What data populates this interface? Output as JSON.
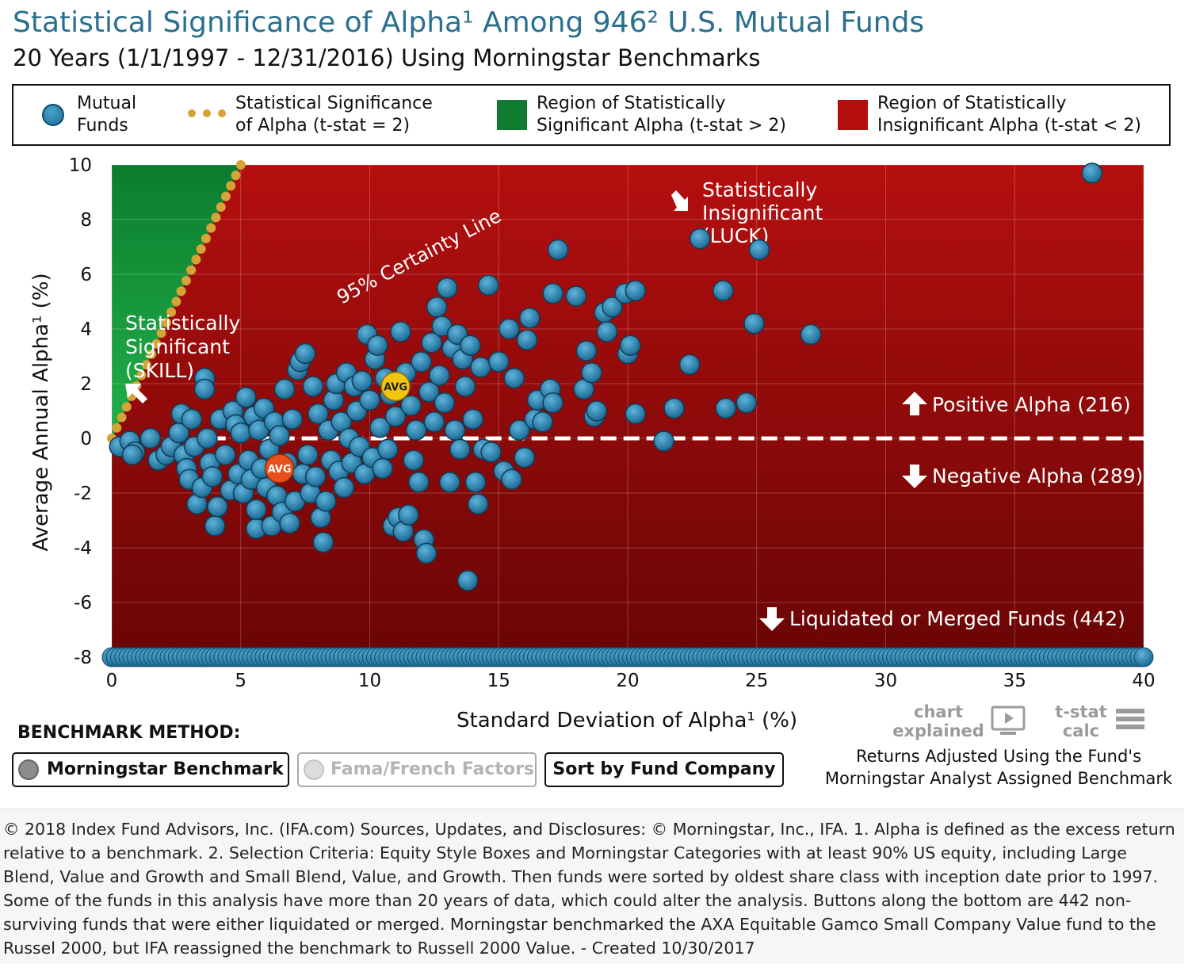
{
  "header": {
    "title": "Statistical Significance of Alpha¹ Among 946² U.S. Mutual Funds",
    "subtitle": "20 Years (1/1/1997 - 12/31/2016) Using Morningstar Benchmarks"
  },
  "legend": {
    "funds_l1": "Mutual",
    "funds_l2": "Funds",
    "line_l1": "Statistical Significance",
    "line_l2": "of Alpha (t-stat = 2)",
    "sig_l1": "Region of Statistically",
    "sig_l2": "Significant Alpha (t-stat > 2)",
    "insig_l1": "Region of Statistically",
    "insig_l2": "Insignificant Alpha (t-stat < 2)"
  },
  "colors": {
    "significant": "#0f8a34",
    "insignificant": "#a30c0c",
    "fund": "#2b86b4",
    "tstat_line": "#d4a437",
    "avg_surviving": "#f2c512",
    "avg_failed": "#e8511c"
  },
  "annotations": {
    "certainty": "95% Certainty Line",
    "luck_l1": "Statistically",
    "luck_l2": "Insignificant",
    "luck_l3": "(LUCK)",
    "skill_l1": "Statistically",
    "skill_l2": "Significant",
    "skill_l3": "(SKILL)",
    "positive": "Positive Alpha (216)",
    "negative": "Negative Alpha (289)",
    "liquidated": "Liquidated or Merged Funds (442)",
    "avg": "AVG"
  },
  "chart_data": {
    "type": "scatter",
    "xlabel": "Standard Deviation of Alpha¹ (%)",
    "ylabel": "Average Annual Alpha¹ (%)",
    "xlim": [
      0,
      40
    ],
    "ylim": [
      -8,
      10
    ],
    "xticks": [
      0,
      5,
      10,
      15,
      20,
      25,
      30,
      35,
      40
    ],
    "yticks": [
      10,
      8,
      6,
      4,
      2,
      0,
      -2,
      -4,
      -6,
      -8
    ],
    "tstat_threshold": 2,
    "series": [
      {
        "name": "Mutual Funds",
        "points": [
          [
            0.3,
            -0.3
          ],
          [
            0.7,
            -0.1
          ],
          [
            0.9,
            -0.5
          ],
          [
            0.8,
            -0.6
          ],
          [
            1.5,
            0.0
          ],
          [
            1.8,
            -0.8
          ],
          [
            2.1,
            -0.6
          ],
          [
            2.3,
            -0.3
          ],
          [
            2.6,
            0.2
          ],
          [
            2.7,
            0.9
          ],
          [
            2.8,
            -0.6
          ],
          [
            2.9,
            -1.1
          ],
          [
            3.0,
            -1.5
          ],
          [
            3.1,
            0.7
          ],
          [
            3.2,
            -0.3
          ],
          [
            3.3,
            -2.4
          ],
          [
            3.5,
            -1.8
          ],
          [
            3.6,
            2.2
          ],
          [
            3.6,
            1.8
          ],
          [
            3.8,
            -0.9
          ],
          [
            3.7,
            0.0
          ],
          [
            3.9,
            -1.4
          ],
          [
            4.0,
            -3.2
          ],
          [
            4.1,
            -2.5
          ],
          [
            4.2,
            0.7
          ],
          [
            4.4,
            -0.6
          ],
          [
            4.6,
            -1.9
          ],
          [
            4.7,
            1.0
          ],
          [
            4.8,
            0.5
          ],
          [
            4.9,
            -1.3
          ],
          [
            5.0,
            0.2
          ],
          [
            5.1,
            -2.0
          ],
          [
            5.2,
            1.5
          ],
          [
            5.3,
            -0.8
          ],
          [
            5.4,
            -1.5
          ],
          [
            5.5,
            0.8
          ],
          [
            5.6,
            -3.3
          ],
          [
            5.6,
            -2.6
          ],
          [
            5.7,
            0.3
          ],
          [
            5.8,
            -1.1
          ],
          [
            5.9,
            1.1
          ],
          [
            6.0,
            -1.8
          ],
          [
            6.1,
            -0.4
          ],
          [
            6.2,
            -3.2
          ],
          [
            6.3,
            0.6
          ],
          [
            6.4,
            -2.1
          ],
          [
            6.5,
            0.1
          ],
          [
            6.6,
            -2.7
          ],
          [
            6.7,
            1.8
          ],
          [
            6.8,
            -0.9
          ],
          [
            6.9,
            -3.1
          ],
          [
            7.0,
            0.7
          ],
          [
            7.1,
            -2.3
          ],
          [
            7.2,
            2.5
          ],
          [
            7.3,
            2.8
          ],
          [
            7.4,
            -1.3
          ],
          [
            7.5,
            3.1
          ],
          [
            7.6,
            -0.6
          ],
          [
            7.7,
            -2.0
          ],
          [
            7.8,
            1.9
          ],
          [
            7.9,
            -1.4
          ],
          [
            8.0,
            0.9
          ],
          [
            8.1,
            -2.9
          ],
          [
            8.2,
            -3.8
          ],
          [
            8.3,
            -2.3
          ],
          [
            8.4,
            0.3
          ],
          [
            8.5,
            -0.8
          ],
          [
            8.6,
            1.4
          ],
          [
            8.7,
            2.0
          ],
          [
            8.8,
            -1.2
          ],
          [
            8.9,
            0.6
          ],
          [
            9.0,
            -1.8
          ],
          [
            9.1,
            2.4
          ],
          [
            9.2,
            0.0
          ],
          [
            9.3,
            -0.9
          ],
          [
            9.4,
            1.9
          ],
          [
            9.5,
            1.0
          ],
          [
            9.6,
            -0.3
          ],
          [
            9.7,
            2.1
          ],
          [
            9.8,
            -1.3
          ],
          [
            9.9,
            3.8
          ],
          [
            10.0,
            1.4
          ],
          [
            10.1,
            -0.7
          ],
          [
            10.2,
            2.9
          ],
          [
            10.3,
            3.4
          ],
          [
            10.4,
            0.4
          ],
          [
            10.5,
            -1.1
          ],
          [
            10.6,
            2.2
          ],
          [
            10.7,
            -0.4
          ],
          [
            10.8,
            1.6
          ],
          [
            10.9,
            -3.2
          ],
          [
            11.0,
            0.8
          ],
          [
            11.1,
            -2.9
          ],
          [
            11.2,
            3.9
          ],
          [
            11.3,
            -3.4
          ],
          [
            11.4,
            2.4
          ],
          [
            11.5,
            -2.8
          ],
          [
            11.6,
            1.2
          ],
          [
            11.7,
            -0.8
          ],
          [
            11.8,
            0.3
          ],
          [
            11.9,
            -1.6
          ],
          [
            12.0,
            2.8
          ],
          [
            12.1,
            -3.7
          ],
          [
            12.2,
            -4.2
          ],
          [
            12.3,
            1.7
          ],
          [
            12.4,
            3.5
          ],
          [
            12.5,
            0.6
          ],
          [
            12.6,
            4.8
          ],
          [
            12.7,
            2.3
          ],
          [
            12.8,
            4.1
          ],
          [
            12.9,
            1.3
          ],
          [
            13.0,
            5.5
          ],
          [
            13.1,
            -1.6
          ],
          [
            13.2,
            3.3
          ],
          [
            13.3,
            0.3
          ],
          [
            13.4,
            3.8
          ],
          [
            13.5,
            -0.4
          ],
          [
            13.6,
            2.9
          ],
          [
            13.7,
            1.9
          ],
          [
            13.8,
            -5.2
          ],
          [
            13.9,
            3.4
          ],
          [
            14.0,
            0.7
          ],
          [
            14.1,
            -1.6
          ],
          [
            14.2,
            -2.4
          ],
          [
            14.3,
            2.6
          ],
          [
            14.4,
            -0.4
          ],
          [
            14.6,
            5.6
          ],
          [
            14.7,
            -0.5
          ],
          [
            15.0,
            2.8
          ],
          [
            15.2,
            -1.2
          ],
          [
            15.4,
            4.0
          ],
          [
            15.5,
            -1.5
          ],
          [
            15.6,
            2.2
          ],
          [
            15.8,
            0.3
          ],
          [
            16.0,
            -0.7
          ],
          [
            16.1,
            3.6
          ],
          [
            16.2,
            4.4
          ],
          [
            16.4,
            0.7
          ],
          [
            16.5,
            1.4
          ],
          [
            16.7,
            0.6
          ],
          [
            17.0,
            1.8
          ],
          [
            17.1,
            1.3
          ],
          [
            17.1,
            5.3
          ],
          [
            17.3,
            6.9
          ],
          [
            18.0,
            5.2
          ],
          [
            18.3,
            1.8
          ],
          [
            18.4,
            3.2
          ],
          [
            18.6,
            2.4
          ],
          [
            18.7,
            0.8
          ],
          [
            18.8,
            1.0
          ],
          [
            19.1,
            4.6
          ],
          [
            19.2,
            3.9
          ],
          [
            19.4,
            4.8
          ],
          [
            19.9,
            5.3
          ],
          [
            20.0,
            3.1
          ],
          [
            20.1,
            3.4
          ],
          [
            20.3,
            5.4
          ],
          [
            20.3,
            0.9
          ],
          [
            21.4,
            -0.1
          ],
          [
            21.8,
            1.1
          ],
          [
            22.4,
            2.7
          ],
          [
            22.8,
            7.3
          ],
          [
            23.7,
            5.4
          ],
          [
            23.8,
            1.1
          ],
          [
            24.6,
            1.3
          ],
          [
            24.9,
            4.2
          ],
          [
            25.1,
            6.9
          ],
          [
            27.1,
            3.8
          ],
          [
            38.0,
            9.7
          ]
        ]
      },
      {
        "name": "AVG Surviving",
        "points": [
          [
            11.0,
            1.9
          ]
        ]
      },
      {
        "name": "AVG Liquidated/Merged",
        "points": [
          [
            6.5,
            -1.1
          ]
        ]
      },
      {
        "name": "Liquidated or Merged Funds",
        "count": 442,
        "y": -8,
        "x_range": [
          0,
          40
        ]
      }
    ]
  },
  "axes": {
    "xlabel": "Standard Deviation of Alpha¹ (%)",
    "ylabel": "Average Annual Alpha¹ (%)"
  },
  "controls": {
    "benchmark_method": "BENCHMARK METHOD:",
    "morningstar": "Morningstar Benchmark",
    "fama_french": "Fama/French Factors",
    "sort": "Sort by Fund Company",
    "chart_explained_l1": "chart",
    "chart_explained_l2": "explained",
    "tstat_l1": "t-stat",
    "tstat_l2": "calc",
    "note_l1": "Returns Adjusted Using the Fund's",
    "note_l2": "Morningstar Analyst Assigned Benchmark"
  },
  "footer": {
    "text": "© 2018 Index Fund Advisors, Inc. (IFA.com) Sources, Updates, and Disclosures: © Morningstar, Inc., IFA. 1. Alpha is defined as the excess return relative to a benchmark. 2. Selection Criteria: Equity Style Boxes and Morningstar Categories with at least 90% US equity, including Large Blend, Value and Growth and Small Blend, Value, and Growth. Then funds were sorted by oldest share class with inception date prior to 1997. Some of the funds in this analysis have more than 20 years of data, which could alter the analysis. Buttons along the bottom are 442 non-surviving funds that were either liquidated or merged. Morningstar benchmarked the AXA Equitable Gamco Small Company Value fund to the Russel 2000, but IFA reassigned the benchmark to Russell 2000 Value. - Created 10/30/2017"
  }
}
